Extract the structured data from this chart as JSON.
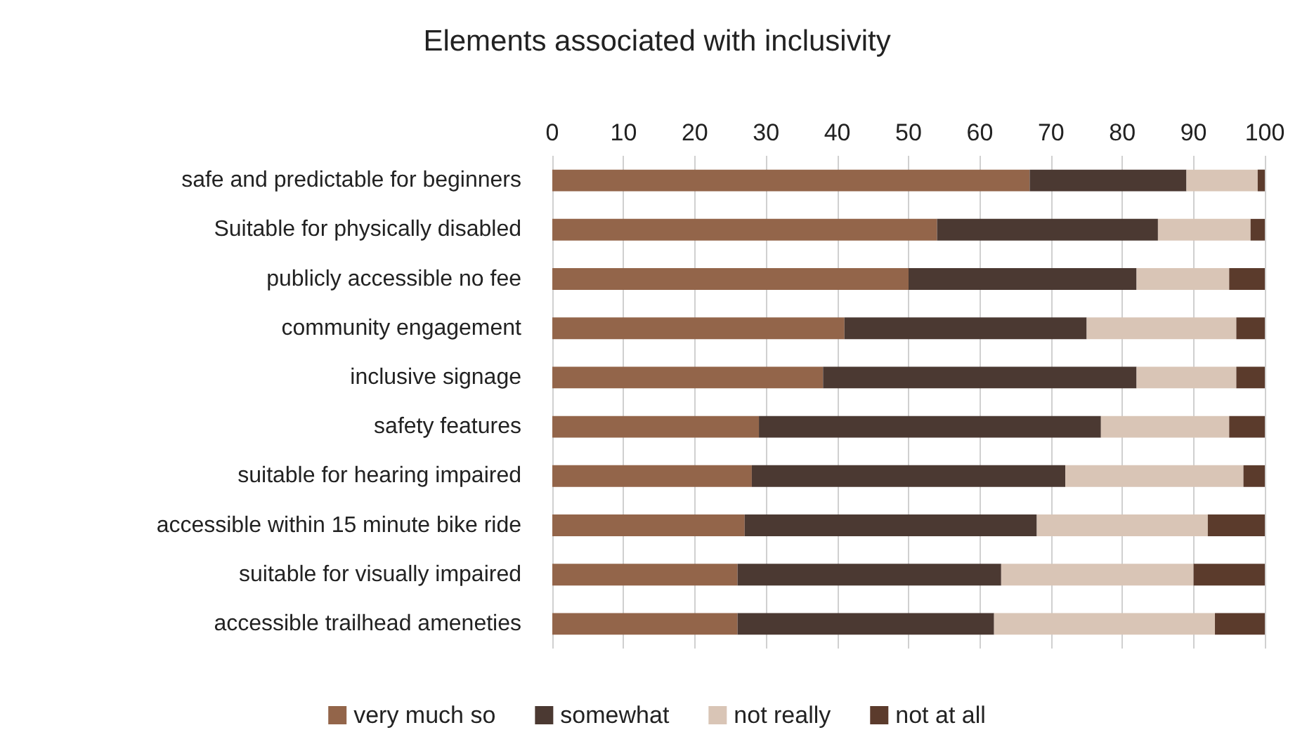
{
  "chart_data": {
    "type": "bar",
    "orientation": "horizontal",
    "stacked": true,
    "title": "Elements associated with inclusivity",
    "categories": [
      "safe and predictable for beginners",
      "Suitable for physically disabled",
      "publicly accessible no fee",
      "community engagement",
      "inclusive signage",
      "safety features",
      "suitable for hearing impaired",
      "accessible within 15 minute bike ride",
      "suitable for visually impaired",
      "accessible trailhead ameneties"
    ],
    "series": [
      {
        "name": "very much so",
        "color": "#93654a",
        "values": [
          67,
          54,
          50,
          41,
          38,
          29,
          28,
          27,
          26,
          26
        ]
      },
      {
        "name": "somewhat",
        "color": "#4b3932",
        "values": [
          22,
          31,
          32,
          34,
          44,
          48,
          44,
          41,
          37,
          36
        ]
      },
      {
        "name": "not really",
        "color": "#d9c5b6",
        "values": [
          10,
          13,
          13,
          21,
          14,
          18,
          25,
          24,
          27,
          31
        ]
      },
      {
        "name": "not at all",
        "color": "#5b3b2c",
        "values": [
          1,
          2,
          5,
          4,
          4,
          5,
          3,
          8,
          10,
          7
        ]
      }
    ],
    "xlim": [
      0,
      100
    ],
    "xticks": [
      0,
      10,
      20,
      30,
      40,
      50,
      60,
      70,
      80,
      90,
      100
    ],
    "grid": "x",
    "legend": "bottom"
  }
}
